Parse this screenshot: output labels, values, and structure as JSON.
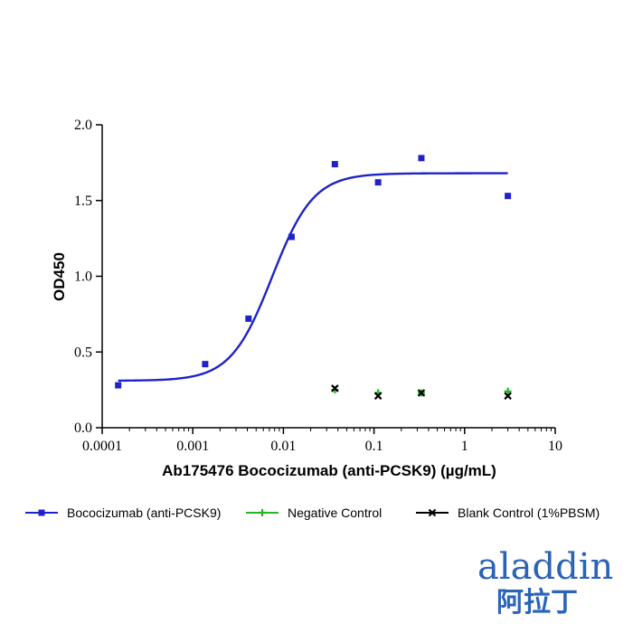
{
  "chart_data": {
    "type": "scatter",
    "xlabel": "Ab175476 Bococizumab (anti-PCSK9) (µg/mL)",
    "ylabel": "OD450",
    "xscale": "log",
    "xlim": [
      0.0001,
      10
    ],
    "ylim": [
      0.0,
      2.0
    ],
    "x_ticks": [
      "0.0001",
      "0.001",
      "0.01",
      "0.1",
      "1",
      "10"
    ],
    "y_ticks": [
      "0.0",
      "0.5",
      "1.0",
      "1.5",
      "2.0"
    ],
    "grid": false,
    "legend_position": "bottom",
    "series": [
      {
        "name": "Bococizumab (anti-PCSK9)",
        "color": "#1f22c8",
        "marker": "square",
        "x": [
          0.00015,
          0.00137,
          0.00412,
          0.0123,
          0.037,
          0.111,
          0.333,
          3.0
        ],
        "y": [
          0.28,
          0.42,
          0.72,
          1.26,
          1.74,
          1.62,
          1.78,
          1.53
        ],
        "fit": {
          "model": "4PL",
          "bottom": 0.31,
          "top": 1.68,
          "ec50": 0.0075,
          "hill": 1.9,
          "range": [
            0.00015,
            3.0
          ]
        }
      },
      {
        "name": "Negative Control",
        "color": "#22b822",
        "marker": "plus",
        "x": [
          0.037,
          0.111,
          0.333,
          3.0
        ],
        "y": [
          0.25,
          0.23,
          0.23,
          0.24
        ]
      },
      {
        "name": "Blank Control (1%PBSM)",
        "color": "#000000",
        "marker": "x",
        "x": [
          0.037,
          0.111,
          0.333,
          3.0
        ],
        "y": [
          0.26,
          0.21,
          0.23,
          0.21
        ]
      }
    ]
  },
  "logo": {
    "text_en": "aladdin",
    "text_cn": "阿拉丁",
    "color": "#2a63b8"
  }
}
